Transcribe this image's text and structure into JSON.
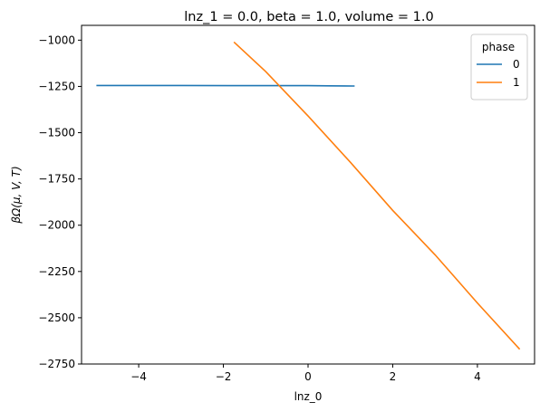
{
  "chart_data": {
    "type": "line",
    "title": "lnz_1 = 0.0, beta = 1.0, volume = 1.0",
    "xlabel": "lnz_0",
    "ylabel": "βΩ(μ, V, T)",
    "xlim": [
      -5.35,
      5.35
    ],
    "ylim": [
      -2750,
      -920
    ],
    "xticks": [
      -4,
      -2,
      0,
      2,
      4
    ],
    "xtick_labels": [
      "−4",
      "−2",
      "0",
      "2",
      "4"
    ],
    "yticks": [
      -1000,
      -1250,
      -1500,
      -1750,
      -2000,
      -2250,
      -2500,
      -2750
    ],
    "ytick_labels": [
      "−1000",
      "−1250",
      "−1500",
      "−1750",
      "−2000",
      "−2250",
      "−2500",
      "−2750"
    ],
    "grid": false,
    "legend": {
      "title": "phase",
      "position": "top-right"
    },
    "series": [
      {
        "name": "0",
        "color": "#1f77b4",
        "x": [
          -5.0,
          -3.0,
          -1.0,
          0.0,
          0.5,
          1.1
        ],
        "y": [
          -1245,
          -1245,
          -1246,
          -1246,
          -1247,
          -1248
        ]
      },
      {
        "name": "1",
        "color": "#ff7f0e",
        "x": [
          -1.75,
          -1.0,
          0.0,
          1.0,
          2.0,
          3.0,
          4.0,
          5.0
        ],
        "y": [
          -1010,
          -1170,
          -1410,
          -1660,
          -1920,
          -2160,
          -2420,
          -2670
        ]
      }
    ]
  }
}
